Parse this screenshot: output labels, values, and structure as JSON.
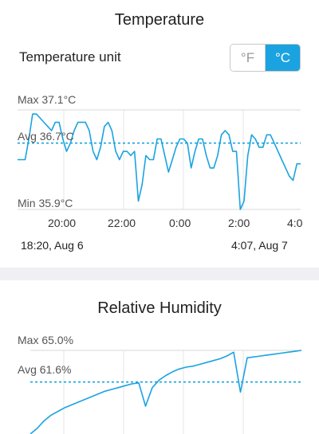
{
  "temperature": {
    "title": "Temperature",
    "unit_label": "Temperature unit",
    "units": [
      {
        "label": "°F",
        "selected": false
      },
      {
        "label": "°C",
        "selected": true
      }
    ],
    "max_label": "Max 37.1°C",
    "avg_label": "Avg 36.7°C",
    "min_label": "Min 35.9°C",
    "ticks": [
      "20:00",
      "22:00",
      "0:00",
      "2:00",
      "4:0"
    ],
    "range_start": "18:20,  Aug 6",
    "range_end": "4:07,  Aug 7"
  },
  "humidity": {
    "title": "Relative Humidity",
    "max_label": "Max 65.0%",
    "avg_label": "Avg 61.6%"
  },
  "colors": {
    "accent": "#1aa3e0",
    "grid": "#d8d8d8",
    "band": "#efeff4"
  },
  "chart_data": [
    {
      "type": "line",
      "ylim": [
        35.9,
        37.1
      ],
      "avg": 36.7,
      "x_ticks": [
        "20:00",
        "22:00",
        "0:00",
        "2:00",
        "4:0"
      ],
      "series": [
        {
          "values": [
            36.5,
            36.5,
            36.5,
            36.75,
            37.05,
            37.05,
            37.0,
            36.95,
            36.9,
            36.85,
            36.95,
            36.95,
            36.75,
            36.6,
            36.7,
            36.85,
            36.95,
            36.95,
            36.95,
            36.85,
            36.6,
            36.5,
            36.65,
            36.9,
            36.95,
            36.85,
            36.6,
            36.5,
            36.6,
            36.6,
            36.55,
            36.6,
            36.0,
            36.2,
            36.55,
            36.5,
            36.5,
            36.75,
            36.75,
            36.55,
            36.35,
            36.5,
            36.65,
            36.75,
            36.75,
            36.7,
            36.4,
            36.6,
            36.75,
            36.75,
            36.55,
            36.4,
            36.4,
            36.55,
            36.8,
            36.85,
            36.8,
            36.6,
            36.6,
            35.9,
            36.0,
            36.55,
            36.8,
            36.75,
            36.65,
            36.65,
            36.8,
            36.8,
            36.7,
            36.6,
            36.5,
            36.4,
            36.3,
            36.25,
            36.45,
            36.45
          ]
        }
      ]
    },
    {
      "type": "line",
      "ylim": [
        56.0,
        65.0
      ],
      "avg": 61.6,
      "series": [
        {
          "values": [
            56.0,
            56.6,
            57.4,
            58.0,
            58.4,
            58.8,
            59.1,
            59.4,
            59.7,
            60.0,
            60.3,
            60.6,
            60.8,
            61.0,
            61.2,
            61.4,
            61.5,
            59.0,
            61.0,
            61.8,
            62.3,
            62.7,
            63.0,
            63.2,
            63.3,
            63.5,
            63.7,
            63.9,
            64.1,
            64.4,
            64.8,
            60.5,
            64.2,
            64.3,
            64.4,
            64.5,
            64.6,
            64.7,
            64.8,
            64.9,
            65.0
          ]
        }
      ]
    }
  ]
}
